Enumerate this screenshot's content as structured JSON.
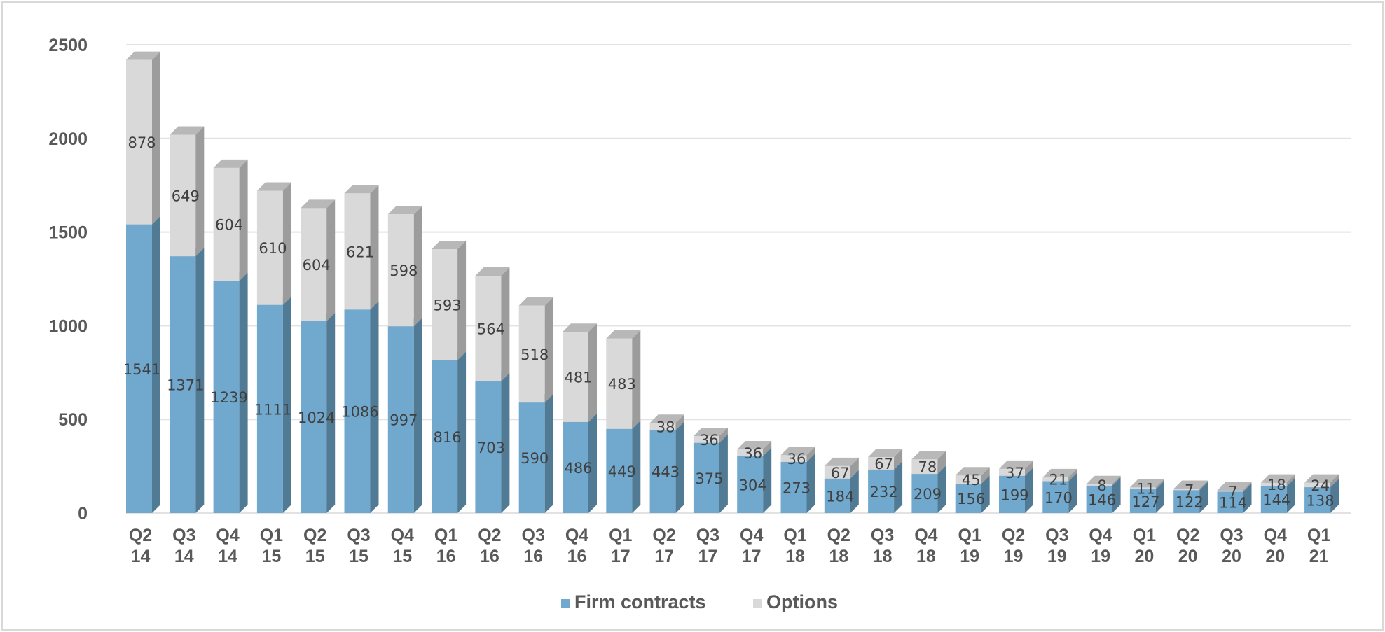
{
  "chart_data": {
    "type": "bar",
    "stacked": true,
    "style": "3d-column",
    "categories": [
      [
        "Q2",
        "14"
      ],
      [
        "Q3",
        "14"
      ],
      [
        "Q4",
        "14"
      ],
      [
        "Q1",
        "15"
      ],
      [
        "Q2",
        "15"
      ],
      [
        "Q3",
        "15"
      ],
      [
        "Q4",
        "15"
      ],
      [
        "Q1",
        "16"
      ],
      [
        "Q2",
        "16"
      ],
      [
        "Q3",
        "16"
      ],
      [
        "Q4",
        "16"
      ],
      [
        "Q1",
        "17"
      ],
      [
        "Q2",
        "17"
      ],
      [
        "Q3",
        "17"
      ],
      [
        "Q4",
        "17"
      ],
      [
        "Q1",
        "18"
      ],
      [
        "Q2",
        "18"
      ],
      [
        "Q3",
        "18"
      ],
      [
        "Q4",
        "18"
      ],
      [
        "Q1",
        "19"
      ],
      [
        "Q2",
        "19"
      ],
      [
        "Q3",
        "19"
      ],
      [
        "Q4",
        "19"
      ],
      [
        "Q1",
        "20"
      ],
      [
        "Q2",
        "20"
      ],
      [
        "Q3",
        "20"
      ],
      [
        "Q4",
        "20"
      ],
      [
        "Q1",
        "21"
      ]
    ],
    "series": [
      {
        "name": "Firm contracts",
        "color": "#71A9CE",
        "values": [
          1541,
          1371,
          1239,
          1111,
          1024,
          1086,
          997,
          816,
          703,
          590,
          486,
          449,
          443,
          375,
          304,
          273,
          184,
          232,
          209,
          156,
          199,
          170,
          146,
          127,
          122,
          114,
          144,
          138
        ]
      },
      {
        "name": "Options",
        "color": "#D9D9D9",
        "values": [
          878,
          649,
          604,
          610,
          604,
          621,
          598,
          593,
          564,
          518,
          481,
          483,
          38,
          36,
          36,
          36,
          67,
          67,
          78,
          45,
          37,
          21,
          8,
          11,
          7,
          7,
          18,
          24
        ]
      }
    ],
    "yticks": [
      "0",
      "500",
      "1000",
      "1500",
      "2000",
      "2500"
    ],
    "ylim": [
      0,
      2500
    ],
    "grid": true,
    "legend": "bottom"
  }
}
